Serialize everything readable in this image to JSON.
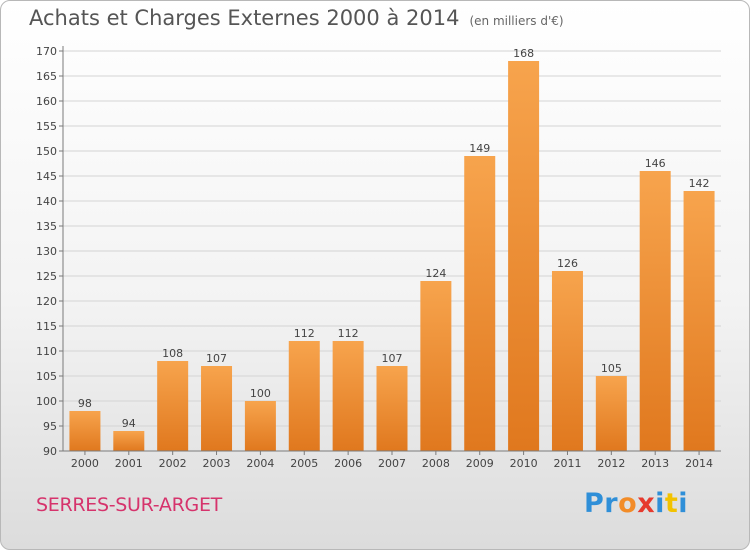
{
  "title": "Achats et Charges Externes 2000 à 2014",
  "subtitle": "(en milliers d'€)",
  "location": "SERRES-SUR-ARGET",
  "brand": {
    "text": "Proxiti",
    "letter_colors": [
      "#2f8fd8",
      "#2f8fd8",
      "#f28c28",
      "#e63a2e",
      "#2f8fd8",
      "#f2c200",
      "#2f8fd8"
    ]
  },
  "colors": {
    "bar_light": "#f7a44d",
    "bar_dark": "#e0781e",
    "grid": "#d4d4d4",
    "axis": "#7a7a7a",
    "title": "#555555",
    "location": "#d6336c"
  },
  "chart_data": {
    "type": "bar",
    "categories": [
      "2000",
      "2001",
      "2002",
      "2003",
      "2004",
      "2005",
      "2006",
      "2007",
      "2008",
      "2009",
      "2010",
      "2011",
      "2012",
      "2013",
      "2014"
    ],
    "values": [
      98,
      94,
      108,
      107,
      100,
      112,
      112,
      107,
      124,
      149,
      168,
      126,
      105,
      146,
      142
    ],
    "ylim": [
      90,
      170
    ],
    "yticks": [
      90,
      95,
      100,
      105,
      110,
      115,
      120,
      125,
      130,
      135,
      140,
      145,
      150,
      155,
      160,
      165,
      170
    ],
    "title": "Achats et Charges Externes 2000 à 2014",
    "subtitle": "(en milliers d'€)",
    "xlabel": "",
    "ylabel": "",
    "grid": true,
    "legend": "none"
  }
}
